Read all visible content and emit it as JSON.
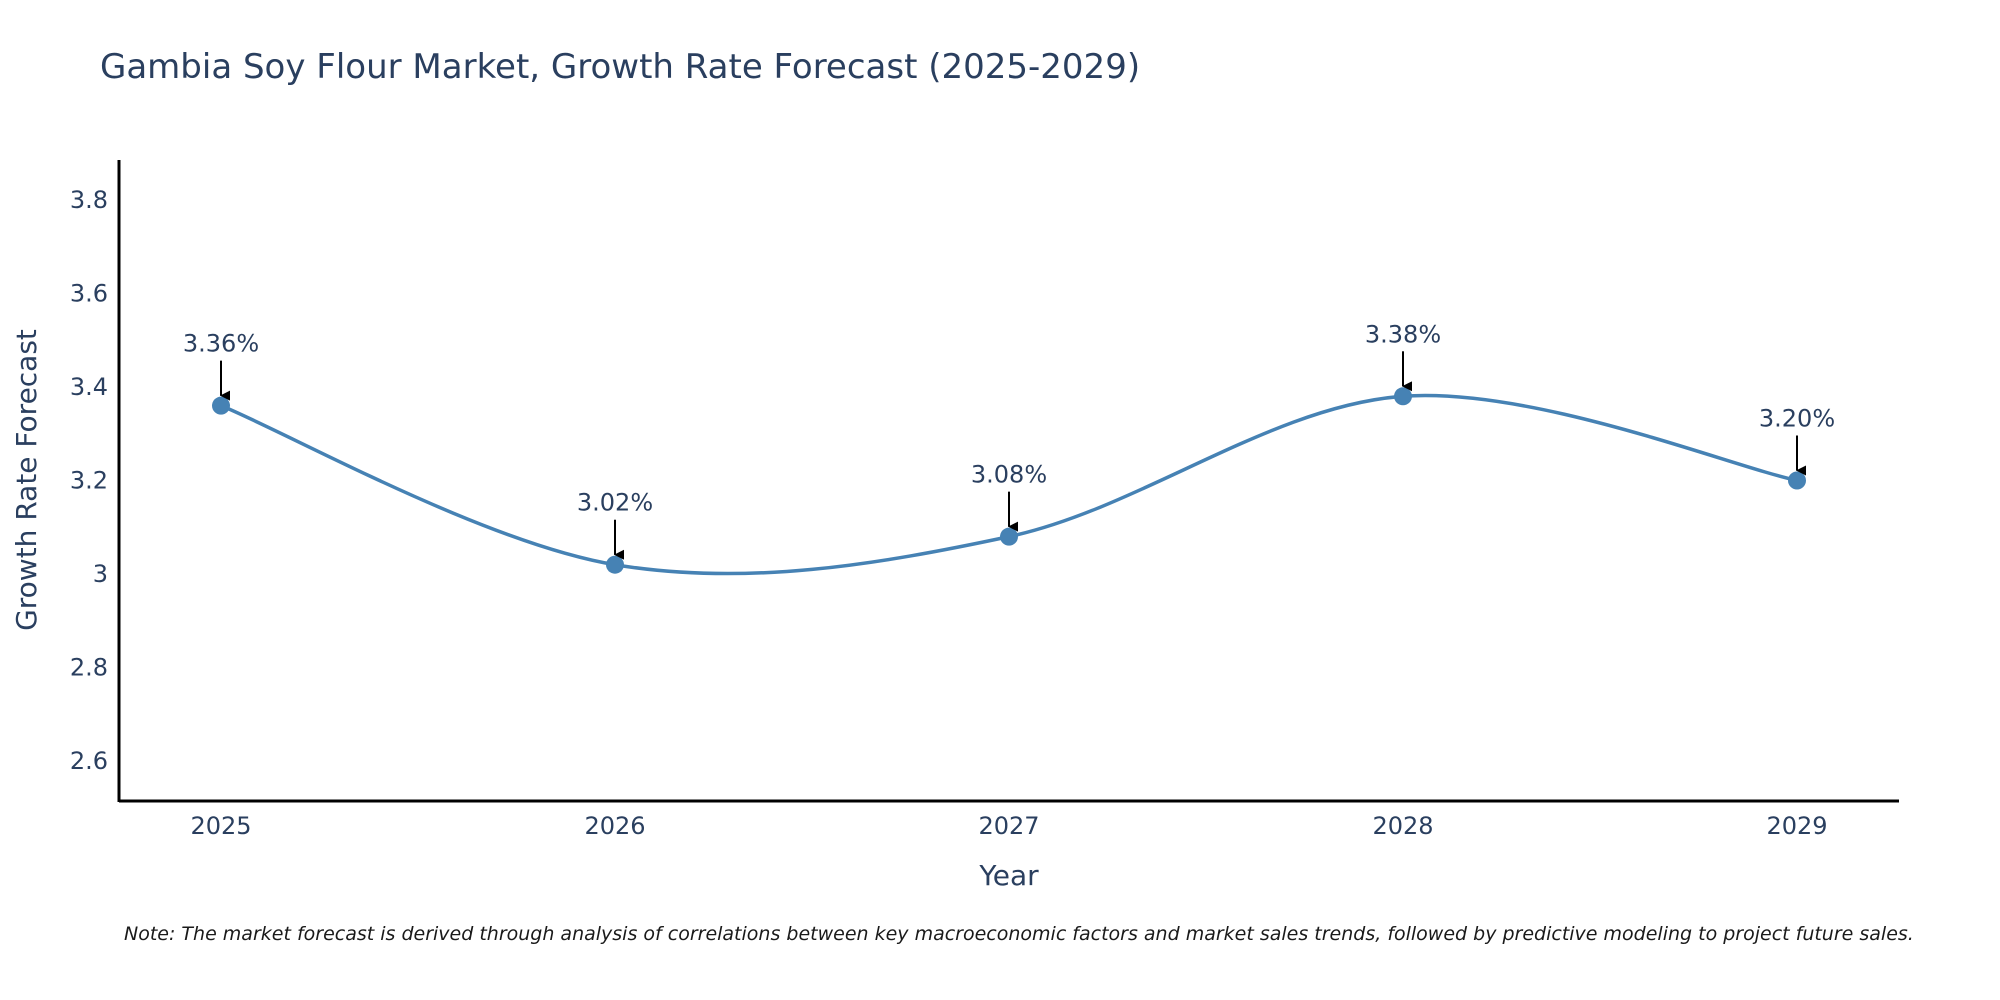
{
  "chart_data": {
    "type": "line",
    "title": "Gambia Soy Flour Market, Growth Rate Forecast (2025-2029)",
    "xlabel": "Year",
    "ylabel": "Growth Rate Forecast",
    "categories": [
      "2025",
      "2026",
      "2027",
      "2028",
      "2029"
    ],
    "series": [
      {
        "name": "Growth Rate Forecast",
        "values": [
          3.36,
          3.02,
          3.08,
          3.38,
          3.2
        ],
        "color": "#4682b4"
      }
    ],
    "data_labels": [
      "3.36%",
      "3.02%",
      "3.08%",
      "3.38%",
      "3.20%"
    ],
    "y_ticks": [
      2.6,
      2.8,
      3,
      3.2,
      3.4,
      3.6,
      3.8
    ],
    "y_tick_labels": [
      "2.6",
      "2.8",
      "3",
      "3.2",
      "3.4",
      "3.6",
      "3.8"
    ],
    "ylim": [
      2.515,
      3.885
    ],
    "grid": false,
    "line_shape": "spline"
  },
  "note": "Note: The market forecast is derived through analysis of correlations between key macroeconomic factors and market sales trends, followed by predictive modeling to project future sales."
}
